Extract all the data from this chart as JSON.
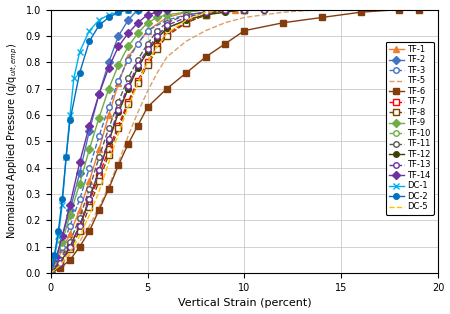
{
  "xlabel": "Vertical Strain (percent)",
  "ylabel": "Normalized Applied Pressure (q/q$_{ult,emp}$)",
  "xlim": [
    0,
    20
  ],
  "ylim": [
    0,
    1.0
  ],
  "xticks": [
    0,
    5,
    10,
    15,
    20
  ],
  "yticks": [
    0,
    0.1,
    0.2,
    0.3,
    0.4,
    0.5,
    0.6,
    0.7,
    0.8,
    0.9,
    1.0
  ],
  "series": [
    {
      "name": "TF-1",
      "color": "#ED7D31",
      "linestyle": "-",
      "marker": "^",
      "markersize": 4,
      "markerfacecolor": "#ED7D31",
      "markeredgecolor": "#ED7D31",
      "x": [
        0,
        0.3,
        0.6,
        1.0,
        1.5,
        2.0,
        2.5,
        3.0,
        3.5,
        4.0,
        5.0,
        6.0,
        7.0,
        8.0,
        9.5
      ],
      "y": [
        0,
        0.04,
        0.09,
        0.15,
        0.24,
        0.35,
        0.47,
        0.6,
        0.72,
        0.82,
        0.92,
        0.97,
        0.99,
        1.0,
        1.0
      ]
    },
    {
      "name": "TF-2",
      "color": "#4472C4",
      "linestyle": "-",
      "marker": "D",
      "markersize": 4,
      "markerfacecolor": "#4472C4",
      "markeredgecolor": "#4472C4",
      "x": [
        0,
        0.3,
        0.6,
        1.0,
        1.5,
        2.0,
        2.5,
        3.0,
        3.5,
        4.0,
        4.5
      ],
      "y": [
        0,
        0.06,
        0.14,
        0.24,
        0.38,
        0.54,
        0.68,
        0.8,
        0.9,
        0.96,
        1.0
      ]
    },
    {
      "name": "TF-3",
      "color": "#4472C4",
      "linestyle": "--",
      "marker": "o",
      "markersize": 4,
      "markerfacecolor": "white",
      "markeredgecolor": "#4472C4",
      "x": [
        0,
        0.3,
        0.6,
        1.0,
        1.5,
        2.0,
        2.5,
        3.0,
        3.5,
        4.0,
        4.5,
        5.0,
        6.0,
        7.0,
        8.0,
        9.0,
        10.0,
        11.0
      ],
      "y": [
        0,
        0.04,
        0.1,
        0.18,
        0.28,
        0.4,
        0.52,
        0.63,
        0.73,
        0.81,
        0.87,
        0.92,
        0.96,
        0.98,
        0.99,
        1.0,
        1.0,
        1.0
      ]
    },
    {
      "name": "TF-5",
      "color": "#D9A06C",
      "linestyle": "--",
      "marker": "None",
      "markersize": 4,
      "markerfacecolor": "#D9A06C",
      "markeredgecolor": "#D9A06C",
      "x": [
        0,
        0.5,
        1.0,
        1.5,
        2.0,
        2.5,
        3.0,
        3.5,
        4.0,
        4.5,
        5.0,
        5.5,
        6.0,
        7.0,
        8.0,
        9.0,
        10.0,
        11.0,
        12.0,
        13.0,
        14.0,
        15.0,
        16.0,
        17.0
      ],
      "y": [
        0,
        0.03,
        0.07,
        0.12,
        0.18,
        0.25,
        0.33,
        0.42,
        0.52,
        0.61,
        0.69,
        0.76,
        0.82,
        0.88,
        0.92,
        0.95,
        0.97,
        0.98,
        0.99,
        0.995,
        1.0,
        1.0,
        1.0,
        1.0
      ]
    },
    {
      "name": "TF-6",
      "color": "#843C0C",
      "linestyle": "-",
      "marker": "s",
      "markersize": 4,
      "markerfacecolor": "#843C0C",
      "markeredgecolor": "#843C0C",
      "x": [
        0,
        0.5,
        1.0,
        1.5,
        2.0,
        2.5,
        3.0,
        3.5,
        4.0,
        4.5,
        5.0,
        6.0,
        7.0,
        8.0,
        9.0,
        10.0,
        12.0,
        14.0,
        16.0,
        18.0,
        19.0
      ],
      "y": [
        0,
        0.02,
        0.05,
        0.1,
        0.16,
        0.24,
        0.32,
        0.41,
        0.49,
        0.56,
        0.63,
        0.7,
        0.76,
        0.82,
        0.87,
        0.92,
        0.95,
        0.97,
        0.99,
        1.0,
        1.0
      ]
    },
    {
      "name": "TF-7",
      "color": "#FF0000",
      "linestyle": "--",
      "marker": "s",
      "markersize": 4,
      "markerfacecolor": "white",
      "markeredgecolor": "#FF0000",
      "x": [
        0,
        0.5,
        1.0,
        1.5,
        2.0,
        2.5,
        3.0,
        3.5,
        4.0,
        4.5,
        5.0,
        5.5,
        6.0,
        7.0,
        8.0,
        9.0,
        10.0
      ],
      "y": [
        0,
        0.04,
        0.1,
        0.18,
        0.27,
        0.37,
        0.47,
        0.56,
        0.65,
        0.73,
        0.8,
        0.86,
        0.91,
        0.95,
        0.98,
        1.0,
        1.0
      ]
    },
    {
      "name": "TF-8",
      "color": "#7B3F00",
      "linestyle": "--",
      "marker": "s",
      "markersize": 4,
      "markerfacecolor": "white",
      "markeredgecolor": "#7B3F00",
      "x": [
        0,
        0.5,
        1.0,
        1.5,
        2.0,
        2.5,
        3.0,
        3.5,
        4.0,
        4.5,
        5.0,
        5.5,
        6.0,
        7.0,
        8.0,
        9.0,
        10.0
      ],
      "y": [
        0,
        0.04,
        0.09,
        0.16,
        0.25,
        0.35,
        0.45,
        0.55,
        0.64,
        0.72,
        0.79,
        0.85,
        0.9,
        0.95,
        0.98,
        1.0,
        1.0
      ]
    },
    {
      "name": "TF-9",
      "color": "#70AD47",
      "linestyle": "-",
      "marker": "D",
      "markersize": 4,
      "markerfacecolor": "#70AD47",
      "markeredgecolor": "#70AD47",
      "x": [
        0,
        0.3,
        0.6,
        1.0,
        1.5,
        2.0,
        2.5,
        3.0,
        3.5,
        4.0,
        4.5,
        5.0,
        5.5,
        6.0,
        7.0,
        8.0,
        9.0,
        10.0,
        11.0
      ],
      "y": [
        0,
        0.05,
        0.12,
        0.22,
        0.34,
        0.47,
        0.59,
        0.7,
        0.79,
        0.86,
        0.91,
        0.95,
        0.97,
        0.98,
        0.99,
        1.0,
        1.0,
        1.0,
        1.0
      ]
    },
    {
      "name": "TF-10",
      "color": "#70AD47",
      "linestyle": "--",
      "marker": "o",
      "markersize": 4,
      "markerfacecolor": "white",
      "markeredgecolor": "#70AD47",
      "x": [
        0,
        0.5,
        1.0,
        1.5,
        2.0,
        2.5,
        3.0,
        3.5,
        4.0,
        4.5,
        5.0,
        5.5,
        6.0,
        7.0,
        8.0,
        9.0,
        10.0,
        11.0
      ],
      "y": [
        0,
        0.04,
        0.1,
        0.18,
        0.28,
        0.39,
        0.5,
        0.61,
        0.7,
        0.78,
        0.84,
        0.89,
        0.93,
        0.96,
        0.98,
        0.99,
        1.0,
        1.0
      ]
    },
    {
      "name": "TF-11",
      "color": "#595959",
      "linestyle": "--",
      "marker": "o",
      "markersize": 4,
      "markerfacecolor": "white",
      "markeredgecolor": "#595959",
      "x": [
        0,
        0.5,
        1.0,
        1.5,
        2.0,
        2.5,
        3.0,
        3.5,
        4.0,
        4.5,
        5.0,
        5.5,
        6.0,
        7.0,
        8.0,
        9.0,
        10.0
      ],
      "y": [
        0,
        0.05,
        0.12,
        0.21,
        0.32,
        0.44,
        0.55,
        0.65,
        0.74,
        0.81,
        0.87,
        0.92,
        0.95,
        0.98,
        0.99,
        1.0,
        1.0
      ]
    },
    {
      "name": "TF-12",
      "color": "#404000",
      "linestyle": "-",
      "marker": "o",
      "markersize": 4,
      "markerfacecolor": "#404000",
      "markeredgecolor": "#404000",
      "x": [
        0,
        0.5,
        1.0,
        1.5,
        2.0,
        2.5,
        3.0,
        3.5,
        4.0,
        4.5,
        5.0,
        5.5,
        6.0,
        7.0,
        8.0,
        9.0,
        10.0,
        11.0
      ],
      "y": [
        0,
        0.04,
        0.1,
        0.18,
        0.28,
        0.39,
        0.5,
        0.61,
        0.7,
        0.78,
        0.84,
        0.89,
        0.93,
        0.96,
        0.98,
        0.99,
        1.0,
        1.0
      ]
    },
    {
      "name": "TF-13",
      "color": "#7030A0",
      "linestyle": "--",
      "marker": "o",
      "markersize": 4,
      "markerfacecolor": "white",
      "markeredgecolor": "#7030A0",
      "x": [
        0,
        0.5,
        1.0,
        1.5,
        2.0,
        2.5,
        3.0,
        3.5,
        4.0,
        4.5,
        5.0,
        5.5,
        6.0,
        7.0,
        8.0,
        9.0,
        10.0,
        11.0
      ],
      "y": [
        0,
        0.04,
        0.1,
        0.18,
        0.28,
        0.39,
        0.51,
        0.62,
        0.71,
        0.79,
        0.85,
        0.9,
        0.94,
        0.97,
        0.99,
        1.0,
        1.0,
        1.0
      ]
    },
    {
      "name": "TF-14",
      "color": "#7030A0",
      "linestyle": "-",
      "marker": "D",
      "markersize": 4,
      "markerfacecolor": "#7030A0",
      "markeredgecolor": "#7030A0",
      "x": [
        0,
        0.3,
        0.6,
        1.0,
        1.5,
        2.0,
        2.5,
        3.0,
        3.5,
        4.0,
        4.5,
        5.0,
        5.5,
        6.0
      ],
      "y": [
        0,
        0.06,
        0.14,
        0.26,
        0.42,
        0.56,
        0.68,
        0.78,
        0.86,
        0.91,
        0.95,
        0.98,
        0.99,
        1.0
      ]
    },
    {
      "name": "DC-1",
      "color": "#00B0F0",
      "linestyle": "-",
      "marker": "x",
      "markersize": 5,
      "markerfacecolor": "#00B0F0",
      "markeredgecolor": "#00B0F0",
      "x": [
        0,
        0.2,
        0.4,
        0.6,
        0.8,
        1.0,
        1.2,
        1.5,
        2.0,
        2.5,
        3.0,
        3.5,
        4.0,
        4.5
      ],
      "y": [
        0,
        0.06,
        0.14,
        0.26,
        0.44,
        0.6,
        0.74,
        0.84,
        0.92,
        0.96,
        0.98,
        0.99,
        1.0,
        1.0
      ]
    },
    {
      "name": "DC-2",
      "color": "#0070C0",
      "linestyle": "-",
      "marker": "o",
      "markersize": 4,
      "markerfacecolor": "#0070C0",
      "markeredgecolor": "#0070C0",
      "x": [
        0,
        0.2,
        0.4,
        0.6,
        0.8,
        1.0,
        1.5,
        2.0,
        2.5,
        3.0,
        3.5,
        4.0,
        4.5
      ],
      "y": [
        0,
        0.07,
        0.16,
        0.28,
        0.44,
        0.58,
        0.76,
        0.88,
        0.94,
        0.97,
        0.99,
        1.0,
        1.0
      ]
    },
    {
      "name": "DC-5",
      "color": "#FFC000",
      "linestyle": "--",
      "marker": "None",
      "markersize": 4,
      "markerfacecolor": "#FFC000",
      "markeredgecolor": "#FFC000",
      "x": [
        0,
        0.5,
        1.0,
        1.5,
        2.0,
        2.5,
        3.0,
        3.5,
        4.0,
        4.5,
        5.0,
        5.5,
        6.0,
        7.0,
        8.0,
        9.0
      ],
      "y": [
        0,
        0.03,
        0.08,
        0.14,
        0.22,
        0.31,
        0.42,
        0.53,
        0.63,
        0.72,
        0.8,
        0.86,
        0.91,
        0.96,
        0.99,
        1.0
      ]
    }
  ]
}
